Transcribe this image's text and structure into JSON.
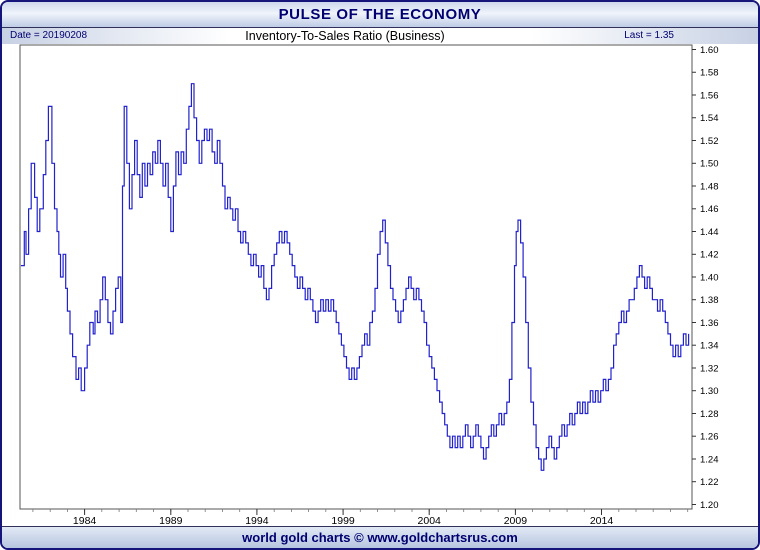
{
  "window": {
    "title": "PULSE OF THE ECONOMY"
  },
  "header": {
    "date_label": "Date = 20190208",
    "title": "Inventory-To-Sales Ratio (Business)",
    "last_label": "Last = 1.35"
  },
  "footer": {
    "credit": "world gold charts © www.goldchartsrus.com"
  },
  "colors": {
    "line": "#2222cc",
    "navy_text": "#000070",
    "plot_border": "#555555",
    "tick": "#333333"
  },
  "chart_data": {
    "type": "line",
    "title": "Inventory-To-Sales Ratio (Business)",
    "date": "20190208",
    "last": 1.35,
    "grid": false,
    "legend": "none",
    "x_axis": {
      "range": [
        1980.25,
        2019.25
      ],
      "tick_labels": [
        "1984",
        "1989",
        "1994",
        "1999",
        "2004",
        "2009",
        "2014"
      ],
      "minor_tick_every_years": 1
    },
    "y_axis": {
      "min": 1.2,
      "max": 1.6,
      "step": 0.02,
      "plot_range": [
        1.196,
        1.604
      ],
      "tick_labels": [
        "1.60",
        "1.58",
        "1.56",
        "1.54",
        "1.52",
        "1.50",
        "1.48",
        "1.46",
        "1.44",
        "1.42",
        "1.40",
        "1.38",
        "1.36",
        "1.34",
        "1.32",
        "1.30",
        "1.28",
        "1.26",
        "1.24",
        "1.22",
        "1.20"
      ]
    },
    "series": [
      {
        "name": "Inventory-To-Sales Ratio (Business)",
        "style": "step",
        "points": [
          [
            1980.3,
            1.41
          ],
          [
            1980.5,
            1.44
          ],
          [
            1980.6,
            1.42
          ],
          [
            1980.75,
            1.46
          ],
          [
            1980.9,
            1.5
          ],
          [
            1981.1,
            1.47
          ],
          [
            1981.25,
            1.44
          ],
          [
            1981.4,
            1.46
          ],
          [
            1981.6,
            1.49
          ],
          [
            1981.75,
            1.52
          ],
          [
            1981.9,
            1.55
          ],
          [
            1982.1,
            1.5
          ],
          [
            1982.25,
            1.46
          ],
          [
            1982.4,
            1.44
          ],
          [
            1982.5,
            1.42
          ],
          [
            1982.6,
            1.4
          ],
          [
            1982.75,
            1.42
          ],
          [
            1982.9,
            1.39
          ],
          [
            1983.0,
            1.37
          ],
          [
            1983.15,
            1.35
          ],
          [
            1983.3,
            1.33
          ],
          [
            1983.5,
            1.31
          ],
          [
            1983.65,
            1.32
          ],
          [
            1983.8,
            1.3
          ],
          [
            1984.0,
            1.32
          ],
          [
            1984.15,
            1.34
          ],
          [
            1984.3,
            1.36
          ],
          [
            1984.5,
            1.35
          ],
          [
            1984.6,
            1.37
          ],
          [
            1984.75,
            1.36
          ],
          [
            1984.9,
            1.38
          ],
          [
            1985.05,
            1.4
          ],
          [
            1985.2,
            1.38
          ],
          [
            1985.35,
            1.36
          ],
          [
            1985.5,
            1.35
          ],
          [
            1985.65,
            1.37
          ],
          [
            1985.8,
            1.39
          ],
          [
            1985.95,
            1.4
          ],
          [
            1986.1,
            1.36
          ],
          [
            1986.2,
            1.48
          ],
          [
            1986.3,
            1.55
          ],
          [
            1986.45,
            1.5
          ],
          [
            1986.6,
            1.46
          ],
          [
            1986.75,
            1.49
          ],
          [
            1986.9,
            1.52
          ],
          [
            1987.05,
            1.49
          ],
          [
            1987.2,
            1.47
          ],
          [
            1987.35,
            1.5
          ],
          [
            1987.5,
            1.48
          ],
          [
            1987.65,
            1.5
          ],
          [
            1987.8,
            1.49
          ],
          [
            1987.95,
            1.51
          ],
          [
            1988.1,
            1.5
          ],
          [
            1988.25,
            1.52
          ],
          [
            1988.4,
            1.5
          ],
          [
            1988.55,
            1.48
          ],
          [
            1988.7,
            1.5
          ],
          [
            1988.85,
            1.47
          ],
          [
            1989.0,
            1.44
          ],
          [
            1989.15,
            1.48
          ],
          [
            1989.3,
            1.51
          ],
          [
            1989.45,
            1.49
          ],
          [
            1989.6,
            1.51
          ],
          [
            1989.75,
            1.5
          ],
          [
            1989.9,
            1.53
          ],
          [
            1990.05,
            1.55
          ],
          [
            1990.2,
            1.57
          ],
          [
            1990.35,
            1.54
          ],
          [
            1990.5,
            1.52
          ],
          [
            1990.65,
            1.5
          ],
          [
            1990.8,
            1.52
          ],
          [
            1990.95,
            1.53
          ],
          [
            1991.1,
            1.52
          ],
          [
            1991.25,
            1.53
          ],
          [
            1991.4,
            1.51
          ],
          [
            1991.55,
            1.5
          ],
          [
            1991.7,
            1.52
          ],
          [
            1991.85,
            1.5
          ],
          [
            1992.0,
            1.48
          ],
          [
            1992.15,
            1.46
          ],
          [
            1992.3,
            1.47
          ],
          [
            1992.45,
            1.46
          ],
          [
            1992.6,
            1.45
          ],
          [
            1992.75,
            1.46
          ],
          [
            1992.9,
            1.44
          ],
          [
            1993.05,
            1.43
          ],
          [
            1993.2,
            1.44
          ],
          [
            1993.35,
            1.43
          ],
          [
            1993.5,
            1.42
          ],
          [
            1993.65,
            1.41
          ],
          [
            1993.8,
            1.42
          ],
          [
            1993.95,
            1.41
          ],
          [
            1994.1,
            1.4
          ],
          [
            1994.25,
            1.41
          ],
          [
            1994.4,
            1.39
          ],
          [
            1994.55,
            1.38
          ],
          [
            1994.7,
            1.39
          ],
          [
            1994.85,
            1.41
          ],
          [
            1995.0,
            1.42
          ],
          [
            1995.15,
            1.43
          ],
          [
            1995.3,
            1.44
          ],
          [
            1995.45,
            1.43
          ],
          [
            1995.6,
            1.44
          ],
          [
            1995.75,
            1.43
          ],
          [
            1995.9,
            1.42
          ],
          [
            1996.05,
            1.41
          ],
          [
            1996.2,
            1.4
          ],
          [
            1996.35,
            1.39
          ],
          [
            1996.5,
            1.4
          ],
          [
            1996.65,
            1.39
          ],
          [
            1996.8,
            1.38
          ],
          [
            1996.95,
            1.39
          ],
          [
            1997.1,
            1.38
          ],
          [
            1997.25,
            1.37
          ],
          [
            1997.4,
            1.36
          ],
          [
            1997.55,
            1.37
          ],
          [
            1997.7,
            1.38
          ],
          [
            1997.85,
            1.37
          ],
          [
            1998.0,
            1.38
          ],
          [
            1998.15,
            1.37
          ],
          [
            1998.3,
            1.38
          ],
          [
            1998.45,
            1.37
          ],
          [
            1998.6,
            1.36
          ],
          [
            1998.75,
            1.35
          ],
          [
            1998.9,
            1.34
          ],
          [
            1999.05,
            1.33
          ],
          [
            1999.2,
            1.32
          ],
          [
            1999.35,
            1.31
          ],
          [
            1999.5,
            1.32
          ],
          [
            1999.65,
            1.31
          ],
          [
            1999.8,
            1.32
          ],
          [
            1999.95,
            1.33
          ],
          [
            2000.1,
            1.34
          ],
          [
            2000.25,
            1.35
          ],
          [
            2000.4,
            1.34
          ],
          [
            2000.55,
            1.36
          ],
          [
            2000.7,
            1.37
          ],
          [
            2000.85,
            1.39
          ],
          [
            2001.0,
            1.42
          ],
          [
            2001.15,
            1.44
          ],
          [
            2001.3,
            1.45
          ],
          [
            2001.45,
            1.43
          ],
          [
            2001.6,
            1.41
          ],
          [
            2001.75,
            1.39
          ],
          [
            2001.9,
            1.38
          ],
          [
            2002.05,
            1.37
          ],
          [
            2002.2,
            1.36
          ],
          [
            2002.35,
            1.37
          ],
          [
            2002.5,
            1.38
          ],
          [
            2002.65,
            1.39
          ],
          [
            2002.8,
            1.4
          ],
          [
            2002.95,
            1.39
          ],
          [
            2003.1,
            1.38
          ],
          [
            2003.25,
            1.39
          ],
          [
            2003.4,
            1.38
          ],
          [
            2003.55,
            1.37
          ],
          [
            2003.7,
            1.36
          ],
          [
            2003.85,
            1.34
          ],
          [
            2004.0,
            1.33
          ],
          [
            2004.15,
            1.32
          ],
          [
            2004.3,
            1.31
          ],
          [
            2004.45,
            1.3
          ],
          [
            2004.6,
            1.29
          ],
          [
            2004.75,
            1.28
          ],
          [
            2004.9,
            1.27
          ],
          [
            2005.05,
            1.26
          ],
          [
            2005.2,
            1.25
          ],
          [
            2005.35,
            1.26
          ],
          [
            2005.5,
            1.25
          ],
          [
            2005.65,
            1.26
          ],
          [
            2005.8,
            1.25
          ],
          [
            2005.95,
            1.26
          ],
          [
            2006.1,
            1.27
          ],
          [
            2006.25,
            1.26
          ],
          [
            2006.4,
            1.25
          ],
          [
            2006.55,
            1.26
          ],
          [
            2006.7,
            1.27
          ],
          [
            2006.85,
            1.26
          ],
          [
            2007.0,
            1.25
          ],
          [
            2007.15,
            1.24
          ],
          [
            2007.3,
            1.25
          ],
          [
            2007.45,
            1.26
          ],
          [
            2007.6,
            1.27
          ],
          [
            2007.75,
            1.26
          ],
          [
            2007.9,
            1.27
          ],
          [
            2008.05,
            1.28
          ],
          [
            2008.2,
            1.27
          ],
          [
            2008.35,
            1.28
          ],
          [
            2008.5,
            1.29
          ],
          [
            2008.65,
            1.31
          ],
          [
            2008.8,
            1.36
          ],
          [
            2008.95,
            1.41
          ],
          [
            2009.05,
            1.44
          ],
          [
            2009.15,
            1.45
          ],
          [
            2009.3,
            1.43
          ],
          [
            2009.45,
            1.4
          ],
          [
            2009.6,
            1.36
          ],
          [
            2009.75,
            1.32
          ],
          [
            2009.9,
            1.29
          ],
          [
            2010.05,
            1.27
          ],
          [
            2010.2,
            1.25
          ],
          [
            2010.35,
            1.24
          ],
          [
            2010.5,
            1.23
          ],
          [
            2010.65,
            1.24
          ],
          [
            2010.8,
            1.25
          ],
          [
            2010.95,
            1.26
          ],
          [
            2011.1,
            1.25
          ],
          [
            2011.25,
            1.24
          ],
          [
            2011.4,
            1.25
          ],
          [
            2011.55,
            1.26
          ],
          [
            2011.7,
            1.27
          ],
          [
            2011.85,
            1.26
          ],
          [
            2012.0,
            1.27
          ],
          [
            2012.15,
            1.28
          ],
          [
            2012.3,
            1.27
          ],
          [
            2012.45,
            1.28
          ],
          [
            2012.6,
            1.29
          ],
          [
            2012.75,
            1.28
          ],
          [
            2012.9,
            1.29
          ],
          [
            2013.05,
            1.28
          ],
          [
            2013.2,
            1.29
          ],
          [
            2013.35,
            1.3
          ],
          [
            2013.5,
            1.29
          ],
          [
            2013.65,
            1.3
          ],
          [
            2013.8,
            1.29
          ],
          [
            2013.95,
            1.3
          ],
          [
            2014.1,
            1.31
          ],
          [
            2014.25,
            1.3
          ],
          [
            2014.4,
            1.31
          ],
          [
            2014.55,
            1.32
          ],
          [
            2014.7,
            1.34
          ],
          [
            2014.85,
            1.35
          ],
          [
            2015.0,
            1.36
          ],
          [
            2015.15,
            1.37
          ],
          [
            2015.3,
            1.36
          ],
          [
            2015.45,
            1.37
          ],
          [
            2015.6,
            1.38
          ],
          [
            2015.75,
            1.38
          ],
          [
            2015.9,
            1.39
          ],
          [
            2016.05,
            1.4
          ],
          [
            2016.2,
            1.41
          ],
          [
            2016.35,
            1.4
          ],
          [
            2016.5,
            1.39
          ],
          [
            2016.65,
            1.4
          ],
          [
            2016.8,
            1.39
          ],
          [
            2016.95,
            1.38
          ],
          [
            2017.1,
            1.38
          ],
          [
            2017.25,
            1.37
          ],
          [
            2017.4,
            1.38
          ],
          [
            2017.55,
            1.37
          ],
          [
            2017.7,
            1.36
          ],
          [
            2017.85,
            1.35
          ],
          [
            2018.0,
            1.34
          ],
          [
            2018.15,
            1.33
          ],
          [
            2018.3,
            1.34
          ],
          [
            2018.45,
            1.33
          ],
          [
            2018.6,
            1.34
          ],
          [
            2018.75,
            1.35
          ],
          [
            2018.9,
            1.34
          ],
          [
            2019.05,
            1.35
          ]
        ]
      }
    ]
  }
}
